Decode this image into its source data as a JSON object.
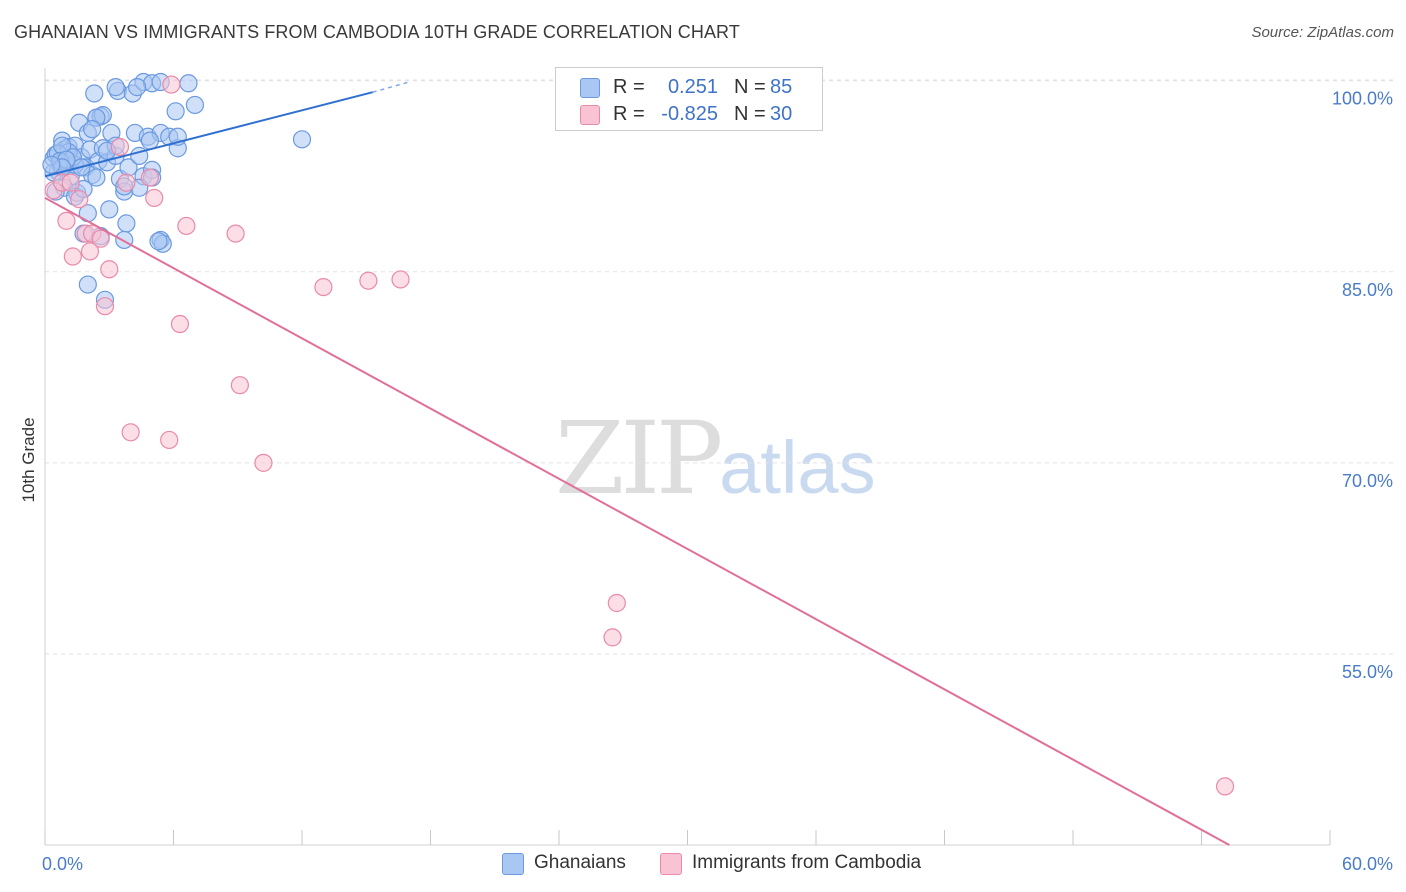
{
  "header": {
    "title": "GHANAIAN VS IMMIGRANTS FROM CAMBODIA 10TH GRADE CORRELATION CHART",
    "source": "Source: ZipAtlas.com"
  },
  "watermark": {
    "zip": "ZIP",
    "atlas": "atlas"
  },
  "legend": {
    "rows": [
      {
        "r_label": "R =",
        "r_value": "0.251",
        "n_label": "N =",
        "n_value": "85",
        "color": "#a9c7f2",
        "border": "#6b9ae0"
      },
      {
        "r_label": "R =",
        "r_value": "-0.825",
        "n_label": "N =",
        "n_value": "30",
        "color": "#f9c3d4",
        "border": "#e98aa9"
      }
    ]
  },
  "bottom_legend": [
    {
      "label": "Ghanaians",
      "color": "#a9c7f2",
      "border": "#6b9ae0"
    },
    {
      "label": "Immigrants from Cambodia",
      "color": "#f9c3d4",
      "border": "#e98aa9"
    }
  ],
  "chart_data": {
    "type": "scatter",
    "title": "GHANAIAN VS IMMIGRANTS FROM CAMBODIA 10TH GRADE CORRELATION CHART",
    "xlabel": "",
    "ylabel": "10th Grade",
    "xlim": [
      0,
      60
    ],
    "ylim": [
      40,
      101
    ],
    "x_tick_labels": [
      {
        "value": 0,
        "label": "0.0%"
      },
      {
        "value": 60,
        "label": "60.0%"
      }
    ],
    "y_tick_labels": [
      {
        "value": 100,
        "label": "100.0%"
      },
      {
        "value": 85,
        "label": "85.0%"
      },
      {
        "value": 70,
        "label": "70.0%"
      },
      {
        "value": 55,
        "label": "55.0%"
      }
    ],
    "y_gridlines": [
      100,
      85,
      70,
      55
    ],
    "series": [
      {
        "name": "Ghanaians",
        "color": "#6b9ae0",
        "fill": "#a9c7f2",
        "trend": {
          "x0": 0,
          "y0": 92.5,
          "x1": 15.3,
          "y1": 99.1,
          "dash_x1": 17.0,
          "dash_y1": 99.9,
          "color": "#2f6fcf"
        },
        "points": [
          [
            0.4,
            93.9
          ],
          [
            0.5,
            94.2
          ],
          [
            0.6,
            92.9
          ],
          [
            0.7,
            93.5
          ],
          [
            0.8,
            95.3
          ],
          [
            0.9,
            94.6
          ],
          [
            1.0,
            93.4
          ],
          [
            1.1,
            94.8
          ],
          [
            1.2,
            92.5
          ],
          [
            1.3,
            93.9
          ],
          [
            1.4,
            94.9
          ],
          [
            1.6,
            96.7
          ],
          [
            1.7,
            94.0
          ],
          [
            1.9,
            93.2
          ],
          [
            2.0,
            95.9
          ],
          [
            2.1,
            94.6
          ],
          [
            2.2,
            92.6
          ],
          [
            2.4,
            97.1
          ],
          [
            2.5,
            93.7
          ],
          [
            2.7,
            94.7
          ],
          [
            2.9,
            93.6
          ],
          [
            3.1,
            95.9
          ],
          [
            3.3,
            94.1
          ],
          [
            3.5,
            92.3
          ],
          [
            3.7,
            91.3
          ],
          [
            3.9,
            93.2
          ],
          [
            4.2,
            95.9
          ],
          [
            4.4,
            94.1
          ],
          [
            4.6,
            92.5
          ],
          [
            4.8,
            95.6
          ],
          [
            5.0,
            93.0
          ],
          [
            5.4,
            95.9
          ],
          [
            5.8,
            95.6
          ],
          [
            6.2,
            94.7
          ],
          [
            0.4,
            92.8
          ],
          [
            0.9,
            91.6
          ],
          [
            1.5,
            91.2
          ],
          [
            2.0,
            89.6
          ],
          [
            3.0,
            89.9
          ],
          [
            3.8,
            88.8
          ],
          [
            1.8,
            88.0
          ],
          [
            2.6,
            87.8
          ],
          [
            3.7,
            87.5
          ],
          [
            5.4,
            87.5
          ],
          [
            5.5,
            87.2
          ],
          [
            2.0,
            84.0
          ],
          [
            2.8,
            82.8
          ],
          [
            5.3,
            87.4
          ],
          [
            2.3,
            99.0
          ],
          [
            3.4,
            99.2
          ],
          [
            4.1,
            99.0
          ],
          [
            4.6,
            99.9
          ],
          [
            5.0,
            99.8
          ],
          [
            5.4,
            99.9
          ],
          [
            6.7,
            99.8
          ],
          [
            7.0,
            98.1
          ],
          [
            6.1,
            97.6
          ],
          [
            2.6,
            97.2
          ],
          [
            2.7,
            97.3
          ],
          [
            4.9,
            95.3
          ],
          [
            6.2,
            95.6
          ],
          [
            1.1,
            94.4
          ],
          [
            1.4,
            93.4
          ],
          [
            3.3,
            94.9
          ],
          [
            0.6,
            94.3
          ],
          [
            0.8,
            94.9
          ],
          [
            1.3,
            94.0
          ],
          [
            2.4,
            97.1
          ],
          [
            4.3,
            99.5
          ],
          [
            5.0,
            92.4
          ],
          [
            2.4,
            92.4
          ],
          [
            1.7,
            93.2
          ],
          [
            0.7,
            93.7
          ],
          [
            1.0,
            93.8
          ],
          [
            2.9,
            94.5
          ],
          [
            1.4,
            90.9
          ],
          [
            4.4,
            91.6
          ],
          [
            3.7,
            91.7
          ],
          [
            0.8,
            93.2
          ],
          [
            12.0,
            95.4
          ],
          [
            0.3,
            93.4
          ],
          [
            0.5,
            91.3
          ],
          [
            1.8,
            91.5
          ],
          [
            2.2,
            96.2
          ],
          [
            3.3,
            99.5
          ]
        ]
      },
      {
        "name": "Immigrants from Cambodia",
        "color": "#e98aa9",
        "fill": "#f9c3d4",
        "trend": {
          "x0": 0,
          "y0": 90.8,
          "x1": 55.3,
          "y1": 40.0,
          "color": "#e07099"
        },
        "points": [
          [
            0.4,
            91.4
          ],
          [
            0.8,
            92.0
          ],
          [
            1.2,
            92.0
          ],
          [
            1.6,
            90.7
          ],
          [
            1.0,
            89.0
          ],
          [
            1.9,
            88.0
          ],
          [
            2.2,
            88.0
          ],
          [
            2.6,
            87.6
          ],
          [
            1.3,
            86.2
          ],
          [
            2.1,
            86.6
          ],
          [
            3.0,
            85.2
          ],
          [
            2.8,
            82.3
          ],
          [
            3.8,
            92.0
          ],
          [
            4.9,
            92.4
          ],
          [
            5.1,
            90.8
          ],
          [
            6.6,
            88.6
          ],
          [
            8.9,
            88.0
          ],
          [
            5.9,
            99.7
          ],
          [
            6.3,
            80.9
          ],
          [
            9.1,
            76.1
          ],
          [
            4.0,
            72.4
          ],
          [
            5.8,
            71.8
          ],
          [
            10.2,
            70.0
          ],
          [
            13.0,
            83.8
          ],
          [
            15.1,
            84.3
          ],
          [
            16.6,
            84.4
          ],
          [
            26.5,
            56.3
          ],
          [
            26.7,
            59.0
          ],
          [
            55.1,
            44.6
          ],
          [
            3.5,
            94.8
          ]
        ]
      }
    ]
  }
}
